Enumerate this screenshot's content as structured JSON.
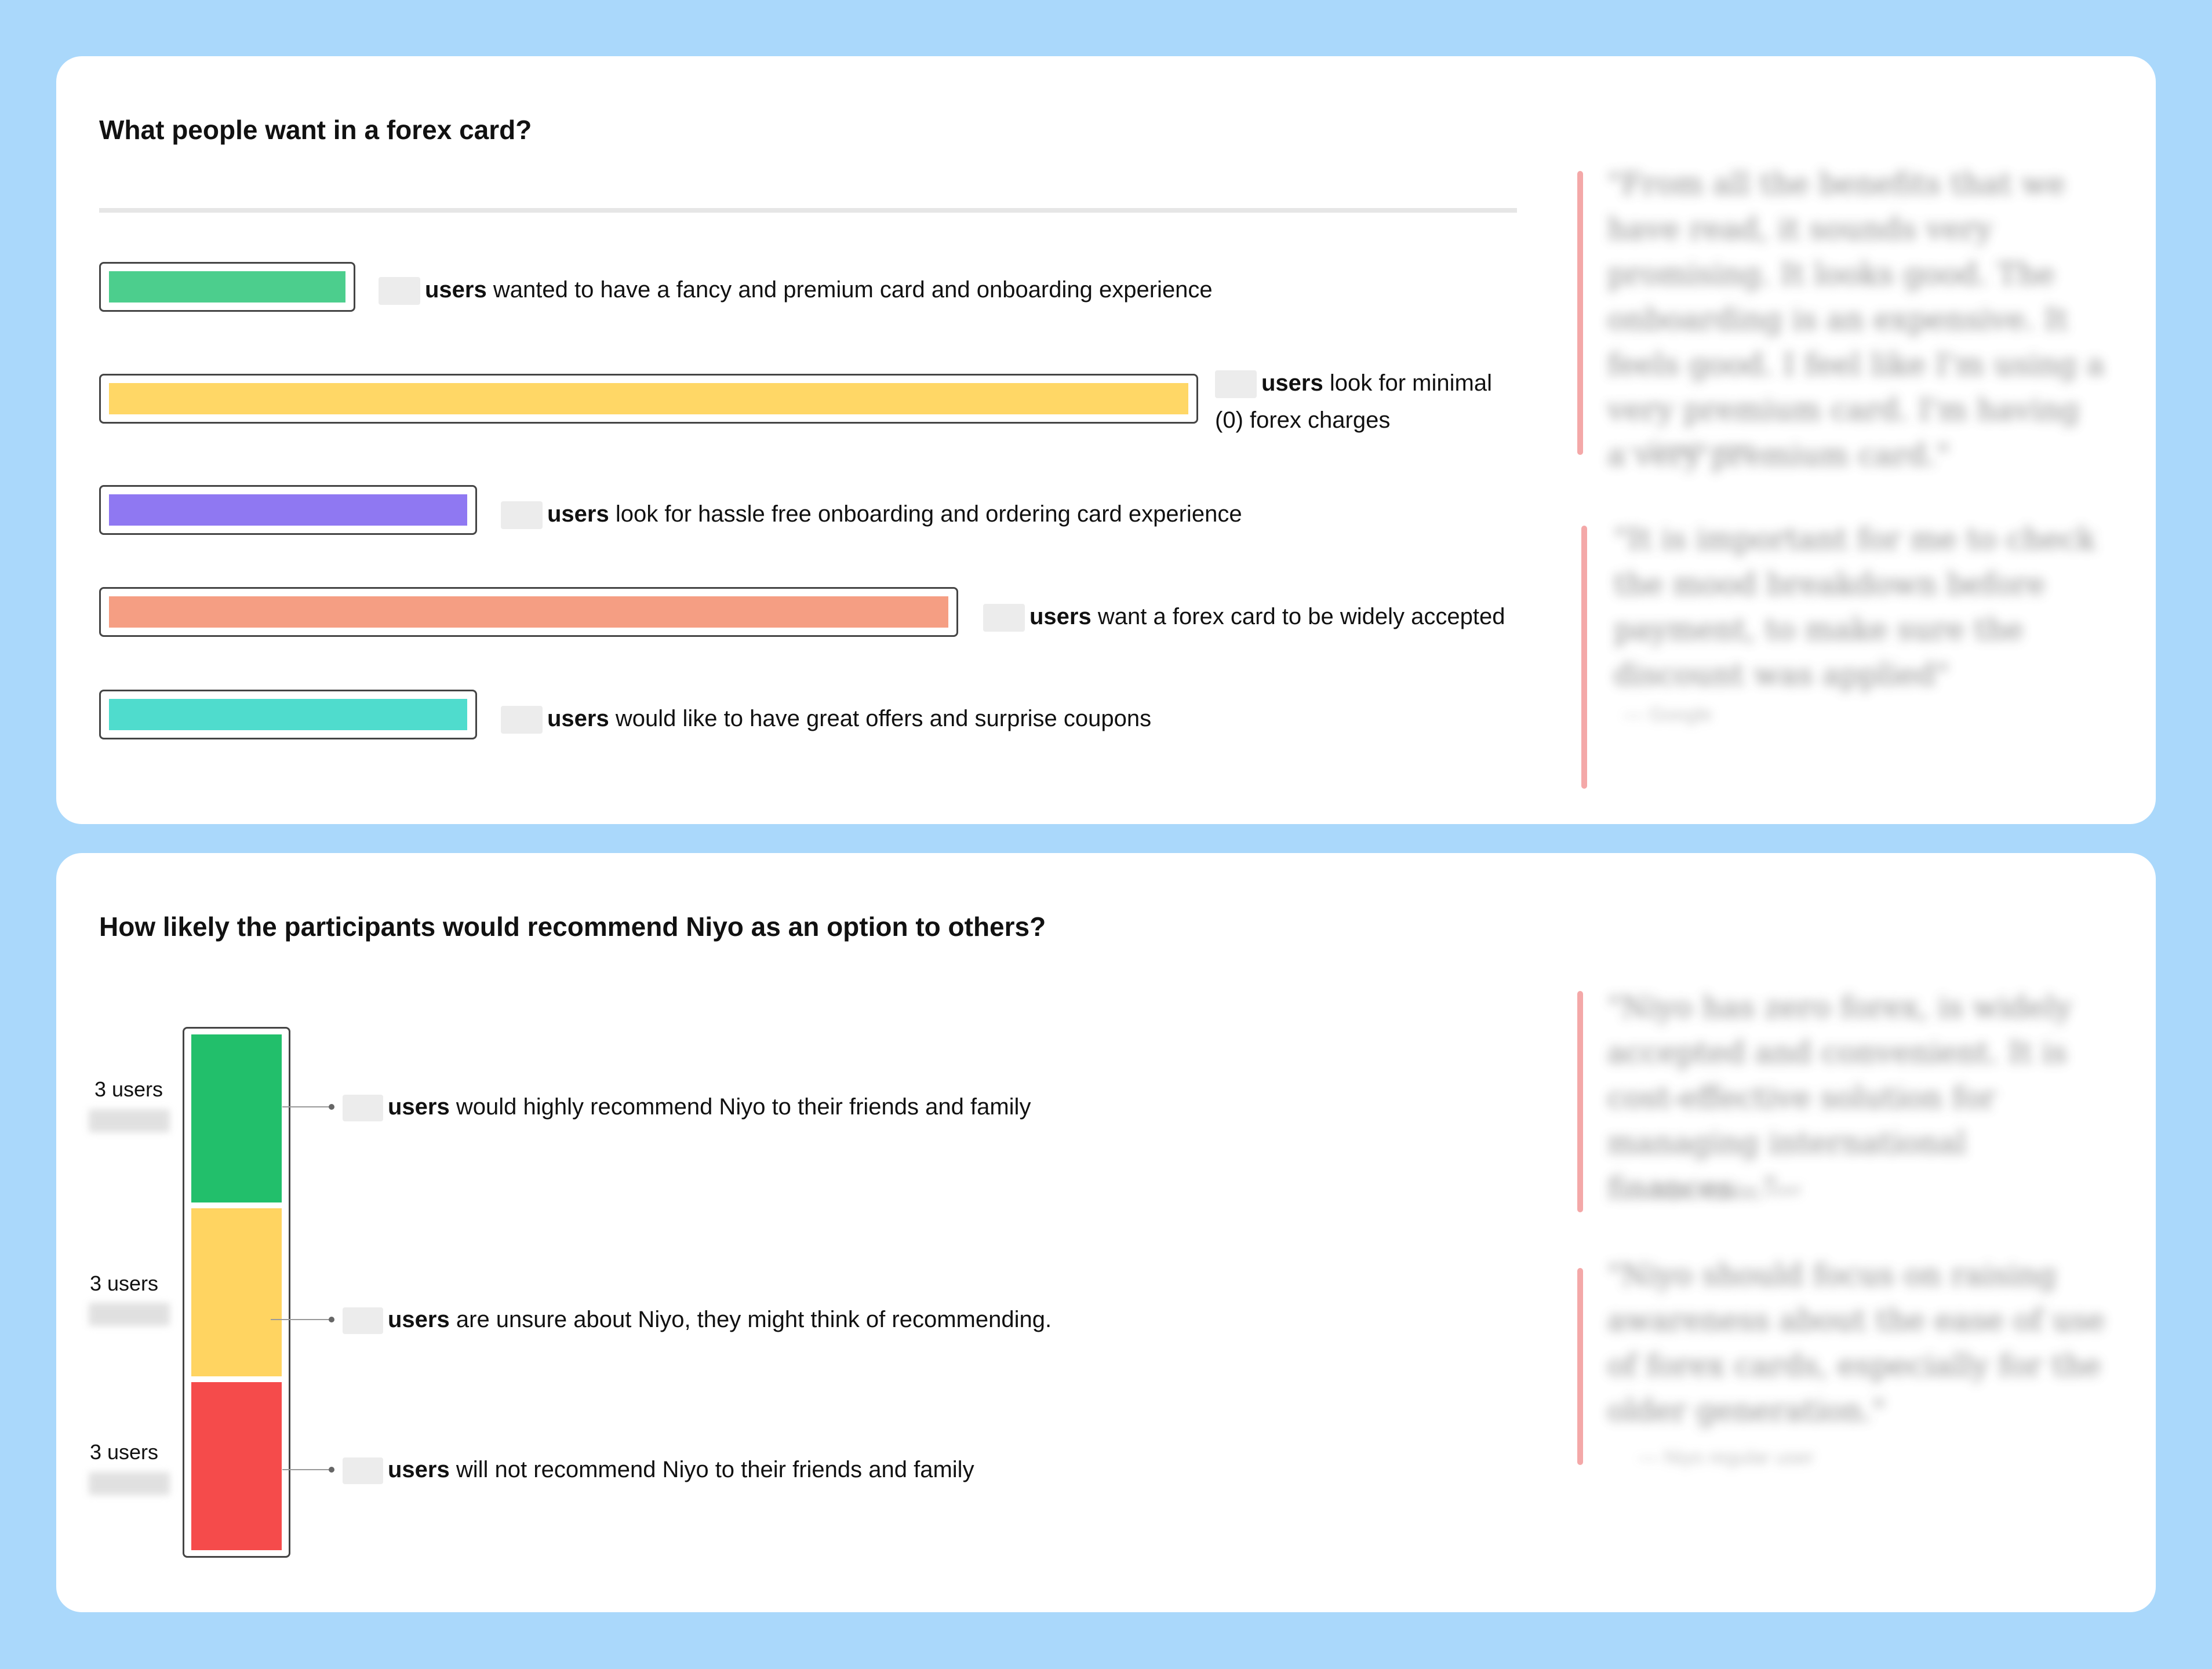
{
  "card1": {
    "title": "What people want in a forex card?",
    "users_word": "users",
    "items": [
      {
        "rest": "wanted to have a fancy and premium card and onboarding experience",
        "color": "#4cce8d"
      },
      {
        "rest1": "look for minimal",
        "rest2": "(0) forex charges",
        "color": "#ffd766"
      },
      {
        "rest": "look for hassle free onboarding and ordering card experience",
        "color": "#8f78f2"
      },
      {
        "rest": "want a forex card to be widely accepted",
        "color": "#f59e83"
      },
      {
        "rest": "would like to have great offers and surprise coupons",
        "color": "#4fdccd"
      }
    ],
    "quotes": [
      {
        "text": "\"From all the benefits that we have read, it sounds very promising. It looks good. The onboarding is an expensive. It feels good. I feel like I'm using a very premium card. I'm having a very premium card.\"",
        "author": "— Google user"
      },
      {
        "text": "\"It is important for me to check the mood breakdown before payment, to make sure the discount was applied\"",
        "author": "— Google"
      }
    ]
  },
  "chart_data": [
    {
      "type": "bar",
      "title": "What people want in a forex card?",
      "categories": [
        "wanted to have a fancy and premium card and onboarding experience",
        "look for minimal (0) forex charges",
        "look for hassle free onboarding and ordering card experience",
        "want a forex card to be widely accepted",
        "would like to have great offers and surprise coupons"
      ],
      "values": [
        2,
        9,
        3,
        7,
        3
      ],
      "orientation": "horizontal"
    },
    {
      "type": "bar",
      "title": "How likely the participants would recommend Niyo as an option to others?",
      "categories": [
        "would highly recommend Niyo to their friends and family",
        "are unsure about Niyo, they might think of recommending.",
        "will not recommend Niyo to their friends and family"
      ],
      "values": [
        3,
        3,
        3
      ],
      "stacked": true,
      "segment_labels": [
        "3 users",
        "3 users",
        "3 users"
      ],
      "colors": [
        "#22bf6b",
        "#ffd461",
        "#f54b4b"
      ]
    }
  ],
  "card2": {
    "title": "How likely the participants would recommend Niyo as an option to others?",
    "users_word": "users",
    "segments": [
      {
        "count_label": "3 users",
        "rest": "would highly recommend Niyo to their friends and family",
        "color": "#22bf6b"
      },
      {
        "count_label": "3 users",
        "rest": "are unsure about Niyo, they might think of recommending.",
        "color": "#ffd461"
      },
      {
        "count_label": "3 users",
        "rest": "will not recommend Niyo to their friends and family",
        "color": "#f54b4b"
      }
    ],
    "quotes": [
      {
        "text": "\"Niyo has zero forex, is widely accepted and convenient. It is cost-effective solution for managing international finances...\"",
        "author": "— Niyo regular user"
      },
      {
        "text": "\"Niyo should focus on raising awareness about the ease of use of forex cards, especially for the older generation.\"",
        "author": "— Niyo regular user"
      }
    ]
  }
}
